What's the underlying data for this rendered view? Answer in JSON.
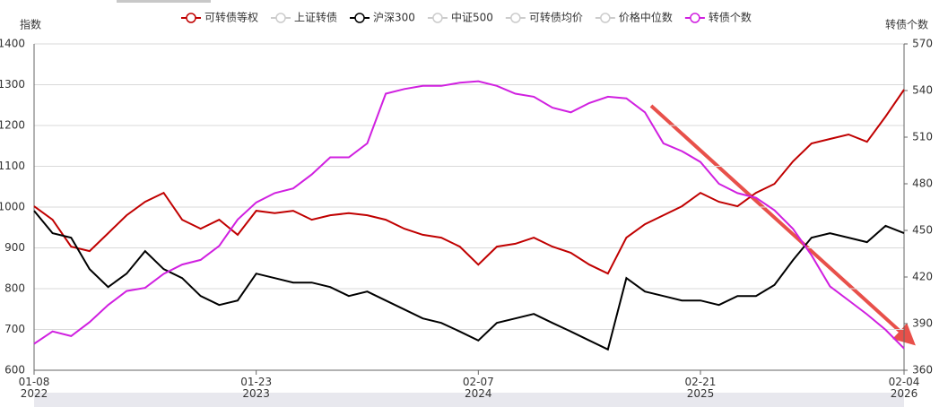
{
  "chart_data": {
    "type": "line",
    "ylabel": "指数",
    "y2label": "转债个数",
    "categories": [
      "01-08 2022",
      null,
      null,
      null,
      null,
      null,
      null,
      null,
      null,
      null,
      null,
      null,
      "01-23 2023",
      null,
      null,
      null,
      null,
      null,
      null,
      null,
      null,
      null,
      null,
      null,
      "02-07 2024",
      null,
      null,
      null,
      null,
      null,
      null,
      null,
      null,
      null,
      null,
      null,
      "02-21 2025",
      null,
      null,
      null,
      null,
      null,
      null,
      null,
      null,
      null,
      null,
      "02-04 2026"
    ],
    "series": [
      {
        "name": "可转债等权",
        "color": "#c00000",
        "values": [
          1002,
          969,
          903,
          892,
          936,
          980,
          1013,
          1035,
          969,
          947,
          969,
          932,
          991,
          985,
          991,
          969,
          980,
          985,
          980,
          969,
          947,
          932,
          925,
          903,
          859,
          903,
          910,
          925,
          903,
          888,
          859,
          837,
          925,
          958,
          980,
          1002,
          1035,
          1013,
          1002,
          1035,
          1057,
          1112,
          1156,
          1167,
          1178,
          1160,
          1222,
          1288
        ]
      },
      {
        "name": "上证转债",
        "color": "#cccccc",
        "hidden": true
      },
      {
        "name": "沪深300",
        "color": "#000000",
        "values": [
          991,
          936,
          925,
          848,
          804,
          837,
          892,
          848,
          826,
          782,
          760,
          771,
          837,
          826,
          815,
          815,
          804,
          782,
          793,
          771,
          749,
          727,
          716,
          695,
          673,
          716,
          727,
          738,
          716,
          695,
          673,
          651,
          826,
          793,
          782,
          771,
          771,
          760,
          782,
          782,
          809,
          870,
          925,
          936,
          925,
          914,
          954,
          936
        ]
      },
      {
        "name": "中证500",
        "color": "#cccccc",
        "hidden": true
      },
      {
        "name": "可转债均价",
        "color": "#cccccc",
        "hidden": true
      },
      {
        "name": "价格中位数",
        "color": "#cccccc",
        "hidden": true
      },
      {
        "name": "转债个数",
        "color": "#d020e0",
        "axis": "y2",
        "values": [
          377,
          385,
          382,
          391,
          402,
          411,
          413,
          422,
          428,
          431,
          440,
          457,
          468,
          474,
          477,
          486,
          497,
          497,
          506,
          538,
          541,
          543,
          543,
          545,
          546,
          543,
          538,
          536,
          529,
          526,
          532,
          536,
          535,
          526,
          506,
          501,
          494,
          480,
          474,
          471,
          463,
          451,
          434,
          414,
          405,
          396,
          386,
          374
        ]
      }
    ],
    "ylim": [
      600,
      1400
    ],
    "yticks": [
      600,
      700,
      800,
      900,
      1000,
      1100,
      1200,
      1300,
      1400
    ],
    "y2lim": [
      360,
      570
    ],
    "y2ticks": [
      360,
      390,
      420,
      450,
      480,
      510,
      540,
      570
    ],
    "grid": true
  }
}
